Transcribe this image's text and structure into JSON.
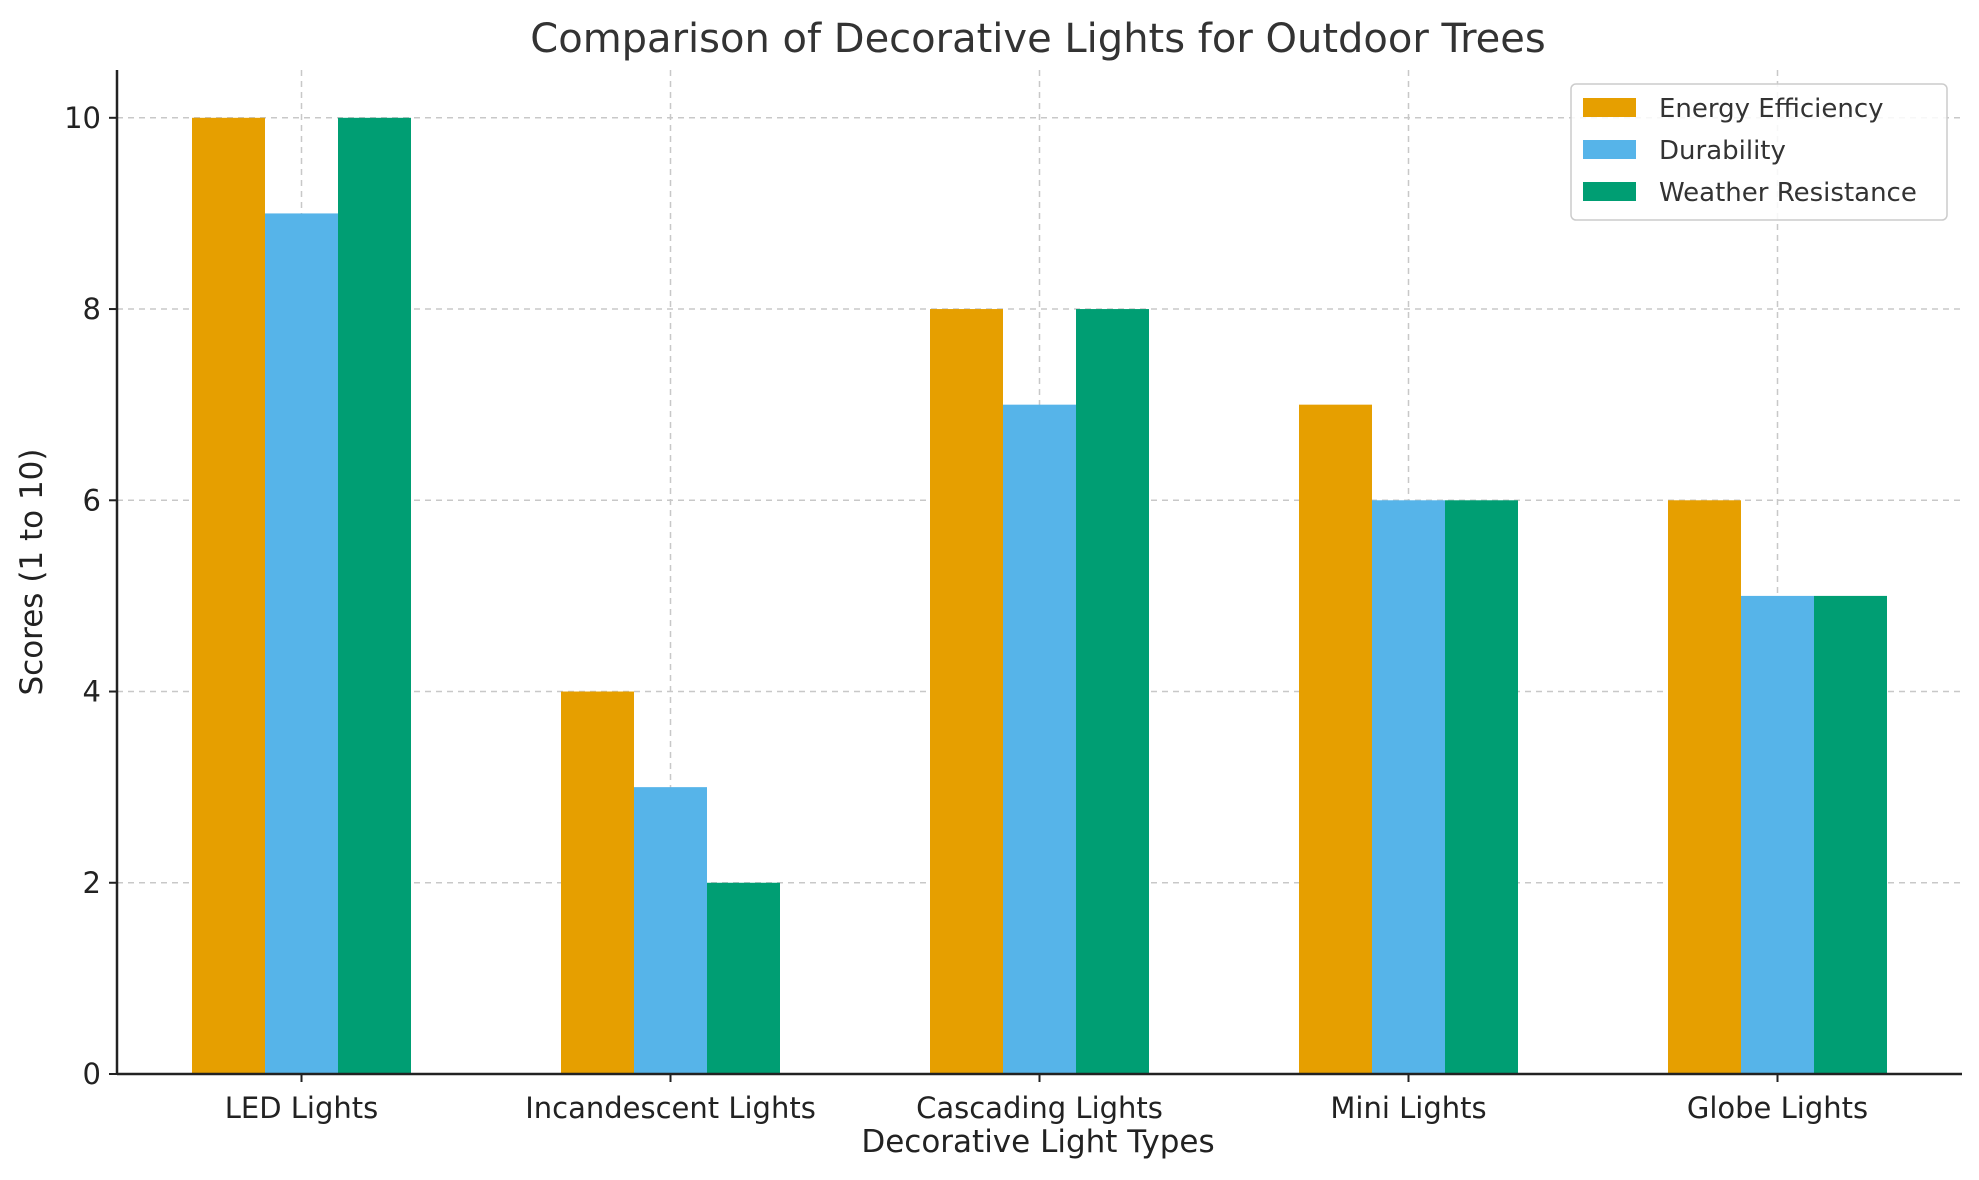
{
  "chart_data": {
    "type": "bar",
    "title": "Comparison of Decorative Lights for Outdoor Trees",
    "xlabel": "Decorative Light Types",
    "ylabel": "Scores (1 to 10)",
    "categories": [
      "LED Lights",
      "Incandescent Lights",
      "Cascading Lights",
      "Mini Lights",
      "Globe Lights"
    ],
    "series": [
      {
        "name": "Energy Efficiency",
        "color": "#E69F00",
        "values": [
          10,
          4,
          8,
          7,
          6
        ]
      },
      {
        "name": "Durability",
        "color": "#56B4E9",
        "values": [
          9,
          3,
          7,
          6,
          5
        ]
      },
      {
        "name": "Weather Resistance",
        "color": "#009E73",
        "values": [
          10,
          2,
          8,
          6,
          5
        ]
      }
    ],
    "ylim": [
      0,
      10.5
    ],
    "yticks": [
      0,
      2,
      4,
      6,
      8,
      10
    ],
    "grid": true,
    "legend": "top-right"
  }
}
